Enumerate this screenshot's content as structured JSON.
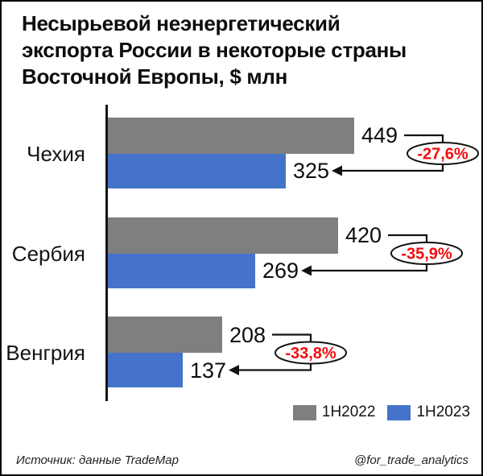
{
  "title_lines": [
    "Несырьевой неэнергетический",
    "экспорта России в некоторые страны",
    "Восточной Европы, $ млн"
  ],
  "chart_data": {
    "type": "bar",
    "orientation": "horizontal",
    "title": "Несырьевой неэнергетический экспорта России в некоторые страны Восточной Европы, $ млн",
    "value_unit": "$ млн",
    "categories": [
      "Чехия",
      "Сербия",
      "Венгрия"
    ],
    "series": [
      {
        "name": "1H2022",
        "color": "#7f7f7f",
        "values": [
          449,
          420,
          208
        ]
      },
      {
        "name": "1H2023",
        "color": "#4573CA",
        "values": [
          325,
          269,
          137
        ]
      }
    ],
    "change_labels": [
      "-27,6%",
      "-35,9%",
      "-33,8%"
    ],
    "change_color": "#F10D0D",
    "xlim": [
      0,
      449
    ],
    "grid": false,
    "legend_position": "bottom-right"
  },
  "footer": {
    "source": "Источник: данные TradeMap",
    "handle": "@for_trade_analytics"
  }
}
